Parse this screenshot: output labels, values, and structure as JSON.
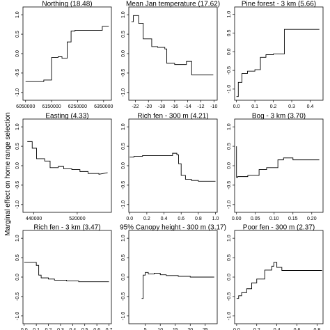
{
  "figure": {
    "ylabel": "Marginal effect on home range selection"
  },
  "chart_data": [
    {
      "type": "line",
      "title": "Northing (18.48)",
      "xlim": [
        6040000,
        6380000
      ],
      "ylim": [
        -1.2,
        1.2
      ],
      "xticks": [
        6050000,
        6150000,
        6250000,
        6350000
      ],
      "xtick_labels": [
        "6050000",
        "6150000",
        "6250000",
        "6350000"
      ],
      "yticks": [
        -1.0,
        -0.5,
        0.0,
        0.5,
        1.0
      ],
      "ytick_labels": [
        "-1.0",
        "-0.5",
        "0.0",
        "0.5",
        "1.0"
      ],
      "x": [
        6050000,
        6120000,
        6120000,
        6150000,
        6150000,
        6175000,
        6175000,
        6190000,
        6190000,
        6210000,
        6210000,
        6225000,
        6225000,
        6240000,
        6240000,
        6345000,
        6345000,
        6370000
      ],
      "y": [
        -0.72,
        -0.72,
        -0.68,
        -0.68,
        -0.1,
        -0.1,
        -0.08,
        -0.08,
        -0.12,
        -0.12,
        0.3,
        0.3,
        0.58,
        0.58,
        0.6,
        0.6,
        0.7,
        0.7
      ]
    },
    {
      "type": "line",
      "title": "Mean Jan temperature (17.62)",
      "xlim": [
        -23,
        -9.5
      ],
      "ylim": [
        -1.2,
        1.2
      ],
      "xticks": [
        -22,
        -20,
        -18,
        -16,
        -14,
        -12,
        -10
      ],
      "xtick_labels": [
        "-22",
        "-20",
        "-18",
        "-16",
        "-14",
        "-12",
        "-10"
      ],
      "yticks": [
        -1.0,
        -0.5,
        0.0,
        0.5,
        1.0
      ],
      "ytick_labels": [
        "-1.0",
        "-0.5",
        "0.0",
        "0.5",
        "1.0"
      ],
      "x": [
        -22.6,
        -22.3,
        -22.3,
        -21.5,
        -21.5,
        -20.8,
        -20.8,
        -19.5,
        -19.5,
        -18.6,
        -18.6,
        -17.5,
        -17.5,
        -17.2,
        -17.2,
        -16.0,
        -16.0,
        -14.2,
        -14.2,
        -13.4,
        -13.4,
        -10.1
      ],
      "y": [
        0.82,
        0.82,
        0.98,
        0.98,
        0.78,
        0.78,
        0.38,
        0.38,
        0.18,
        0.18,
        0.16,
        0.16,
        0.12,
        0.12,
        -0.25,
        -0.25,
        -0.28,
        -0.28,
        -0.2,
        -0.2,
        -0.55,
        -0.55
      ]
    },
    {
      "type": "line",
      "title": "Pine forest - 3 km (5.66)",
      "xlim": [
        -0.01,
        0.47
      ],
      "ylim": [
        -1.3,
        1.2
      ],
      "xticks": [
        0.0,
        0.1,
        0.2,
        0.3,
        0.4
      ],
      "xtick_labels": [
        "0.0",
        "0.1",
        "0.2",
        "0.3",
        "0.4"
      ],
      "yticks": [
        -1.0,
        -0.5,
        0.0,
        0.5,
        1.0
      ],
      "ytick_labels": [
        "-1.0",
        "-0.5",
        "0.0",
        "0.5",
        "1.0"
      ],
      "x": [
        0.0,
        0.01,
        0.01,
        0.03,
        0.03,
        0.06,
        0.06,
        0.1,
        0.1,
        0.13,
        0.13,
        0.16,
        0.16,
        0.2,
        0.2,
        0.26,
        0.26,
        0.45
      ],
      "y": [
        -1.2,
        -1.2,
        -0.82,
        -0.82,
        -0.58,
        -0.58,
        -0.52,
        -0.52,
        -0.48,
        -0.48,
        -0.15,
        -0.15,
        -0.08,
        -0.08,
        -0.06,
        -0.06,
        0.6,
        0.6
      ]
    },
    {
      "type": "line",
      "title": "Easting (4.33)",
      "xlim": [
        420000,
        583000
      ],
      "ylim": [
        -1.2,
        1.2
      ],
      "xticks": [
        440000,
        520000
      ],
      "xtick_labels": [
        "440000",
        "520000"
      ],
      "yticks": [
        -1.0,
        -0.5,
        0.0,
        0.5,
        1.0
      ],
      "ytick_labels": [
        "-1.0",
        "-0.5",
        "0.0",
        "0.5",
        "1.0"
      ],
      "x": [
        428000,
        437000,
        437000,
        445000,
        445000,
        460000,
        460000,
        470000,
        470000,
        485000,
        485000,
        495000,
        495000,
        510000,
        510000,
        525000,
        525000,
        540000,
        540000,
        560000,
        560000,
        576000
      ],
      "y": [
        0.62,
        0.62,
        0.45,
        0.45,
        0.18,
        0.18,
        0.12,
        0.12,
        -0.05,
        -0.05,
        -0.02,
        -0.02,
        -0.08,
        -0.08,
        -0.1,
        -0.1,
        -0.15,
        -0.15,
        -0.2,
        -0.2,
        -0.22,
        -0.18
      ]
    },
    {
      "type": "line",
      "title": "Rich fen - 300 m (4.21)",
      "xlim": [
        -0.01,
        1.02
      ],
      "ylim": [
        -1.2,
        1.2
      ],
      "xticks": [
        0.0,
        0.2,
        0.4,
        0.6,
        0.8,
        1.0
      ],
      "xtick_labels": [
        "0.0",
        "0.2",
        "0.4",
        "0.6",
        "0.8",
        "1.0"
      ],
      "yticks": [
        -1.0,
        -0.5,
        0.0,
        0.5,
        1.0
      ],
      "ytick_labels": [
        "-1.0",
        "-0.5",
        "0.0",
        "0.5",
        "1.0"
      ],
      "x": [
        0.0,
        0.05,
        0.05,
        0.15,
        0.15,
        0.5,
        0.5,
        0.55,
        0.55,
        0.57,
        0.57,
        0.6,
        0.6,
        0.65,
        0.65,
        0.72,
        0.72,
        0.8,
        0.8,
        1.0
      ],
      "y": [
        0.22,
        0.22,
        0.24,
        0.24,
        0.26,
        0.26,
        0.32,
        0.32,
        0.28,
        0.28,
        0.05,
        0.05,
        -0.25,
        -0.25,
        -0.35,
        -0.35,
        -0.38,
        -0.38,
        -0.4,
        -0.4
      ]
    },
    {
      "type": "line",
      "title": "Bog - 3 km (3.70)",
      "xlim": [
        -0.005,
        0.23
      ],
      "ylim": [
        -1.2,
        1.2
      ],
      "xticks": [
        0.0,
        0.05,
        0.1,
        0.15,
        0.2
      ],
      "xtick_labels": [
        "0.00",
        "0.05",
        "0.10",
        "0.15",
        "0.20"
      ],
      "yticks": [
        -1.0,
        -0.5,
        0.0,
        0.5,
        1.0
      ],
      "ytick_labels": [
        "-1.0",
        "-0.5",
        "0.0",
        "0.5",
        "1.0"
      ],
      "x": [
        0.0,
        0.0,
        0.003,
        0.003,
        0.03,
        0.03,
        0.06,
        0.06,
        0.08,
        0.08,
        0.11,
        0.11,
        0.125,
        0.125,
        0.15,
        0.15,
        0.22
      ],
      "y": [
        0.5,
        -0.3,
        -0.3,
        -0.28,
        -0.28,
        -0.25,
        -0.25,
        -0.1,
        -0.1,
        -0.05,
        -0.05,
        0.15,
        0.15,
        0.2,
        0.2,
        0.15,
        0.15
      ]
    },
    {
      "type": "line",
      "title": "Rich fen - 3 km (3.47)",
      "xlim": [
        -0.01,
        0.72
      ],
      "ylim": [
        -1.2,
        1.2
      ],
      "xticks": [
        0.0,
        0.1,
        0.2,
        0.3,
        0.4,
        0.5,
        0.6,
        0.7
      ],
      "xtick_labels": [
        "0.0",
        "0.1",
        "0.2",
        "0.3",
        "0.4",
        "0.5",
        "0.6",
        "0.7"
      ],
      "yticks": [
        -1.0,
        -0.5,
        0.0,
        0.5,
        1.0
      ],
      "ytick_labels": [
        "-1.0",
        "-0.5",
        "0.0",
        "0.5",
        "1.0"
      ],
      "x": [
        0.0,
        0.1,
        0.1,
        0.12,
        0.12,
        0.14,
        0.14,
        0.2,
        0.2,
        0.25,
        0.25,
        0.35,
        0.35,
        0.45,
        0.45,
        0.7
      ],
      "y": [
        0.38,
        0.38,
        0.3,
        0.3,
        0.05,
        0.05,
        -0.02,
        -0.02,
        -0.05,
        -0.05,
        -0.08,
        -0.08,
        -0.1,
        -0.1,
        -0.12,
        -0.12
      ]
    },
    {
      "type": "line",
      "title": "95% Canopy height - 300 m (3.17)",
      "xlim": [
        -0.5,
        29
      ],
      "ylim": [
        -1.2,
        1.2
      ],
      "xticks": [
        5,
        10,
        15,
        20,
        25
      ],
      "xtick_labels": [
        "5",
        "10",
        "15",
        "20",
        "25"
      ],
      "yticks": [
        -1.0,
        -0.5,
        0.0,
        0.5,
        1.0
      ],
      "ytick_labels": [
        "-1.0",
        "-0.5",
        "0.0",
        "0.5",
        "1.0"
      ],
      "x": [
        3.8,
        4.3,
        4.3,
        5.0,
        5.0,
        6.0,
        6.0,
        8.0,
        8.0,
        10.0,
        10.0,
        12.0,
        12.0,
        16.0,
        16.0,
        20.0,
        20.0,
        28.0
      ],
      "y": [
        -0.55,
        -0.55,
        0.05,
        0.05,
        0.12,
        0.12,
        0.08,
        0.08,
        0.1,
        0.1,
        0.06,
        0.06,
        0.04,
        0.04,
        0.02,
        0.02,
        0.0,
        0.0
      ]
    },
    {
      "type": "line",
      "title": "Poor fen - 300 m (2.37)",
      "xlim": [
        -0.02,
        0.86
      ],
      "ylim": [
        -1.2,
        1.2
      ],
      "xticks": [
        0.0,
        0.2,
        0.4,
        0.6,
        0.8
      ],
      "xtick_labels": [
        "0.0",
        "0.2",
        "0.4",
        "0.6",
        "0.8"
      ],
      "yticks": [
        -1.0,
        -0.5,
        0.0,
        0.5,
        1.0
      ],
      "ytick_labels": [
        "-1.0",
        "-0.5",
        "0.0",
        "0.5",
        "1.0"
      ],
      "x": [
        0.0,
        0.02,
        0.02,
        0.05,
        0.05,
        0.1,
        0.1,
        0.15,
        0.15,
        0.2,
        0.2,
        0.28,
        0.28,
        0.35,
        0.35,
        0.37,
        0.37,
        0.4,
        0.4,
        0.45,
        0.45,
        0.85
      ],
      "y": [
        -0.55,
        -0.55,
        -0.48,
        -0.48,
        -0.4,
        -0.4,
        -0.3,
        -0.3,
        -0.15,
        -0.15,
        -0.05,
        -0.05,
        0.18,
        0.18,
        0.28,
        0.28,
        0.38,
        0.38,
        0.25,
        0.25,
        0.17,
        0.17
      ]
    }
  ]
}
